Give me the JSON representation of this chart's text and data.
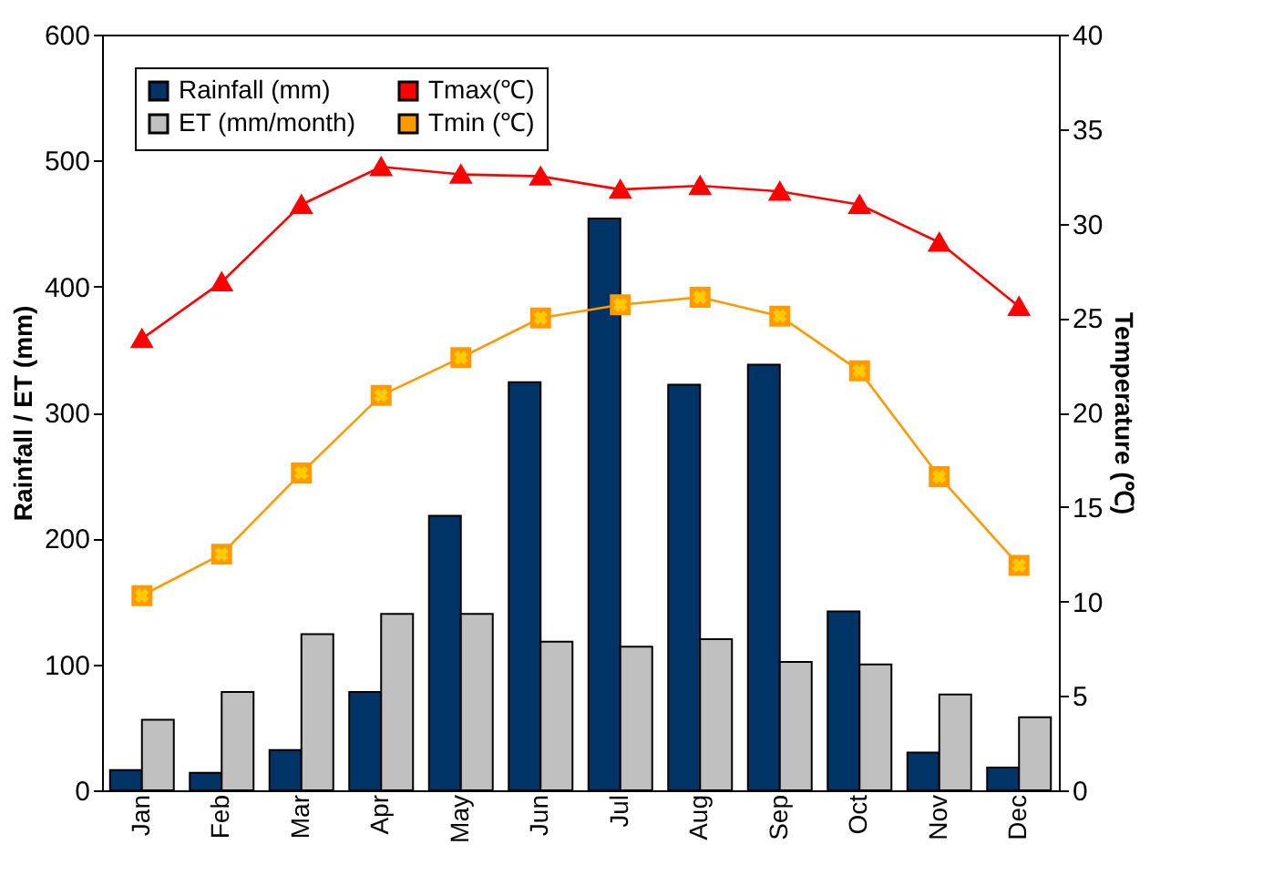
{
  "chart_data": {
    "type": "bar",
    "ylabel": "Rainfall / ET (mm)",
    "y2label": "Temperature (℃)",
    "categories": [
      "Jan",
      "Feb",
      "Mar",
      "Apr",
      "May",
      "Jun",
      "Jul",
      "Aug",
      "Sep",
      "Oct",
      "Nov",
      "Dec"
    ],
    "series": [
      {
        "name": "Rainfall (mm)",
        "color": "#003366",
        "values": [
          16,
          14,
          32,
          78,
          218,
          324,
          454,
          322,
          338,
          142,
          30,
          18
        ]
      },
      {
        "name": "ET (mm/month)",
        "color": "#c0c0c0",
        "values": [
          56,
          78,
          124,
          140,
          140,
          118,
          114,
          120,
          102,
          100,
          76,
          58
        ]
      },
      {
        "name": "Tmax(℃)",
        "type": "line",
        "axis": "y2",
        "marker": "triangle",
        "color": "#ff0000",
        "values": [
          23.9,
          26.9,
          31.0,
          33.0,
          32.6,
          32.5,
          31.8,
          32.0,
          31.7,
          31.0,
          29.0,
          25.6
        ]
      },
      {
        "name": "Tmin (℃)",
        "type": "line",
        "axis": "y2",
        "marker": "square",
        "color": "#ff9900",
        "values": [
          10.3,
          12.5,
          16.8,
          20.9,
          22.9,
          25.0,
          25.7,
          26.1,
          25.1,
          22.2,
          16.6,
          11.9
        ]
      }
    ],
    "ylim": [
      0,
      600
    ],
    "yticks": [
      0,
      100,
      200,
      300,
      400,
      500,
      600
    ],
    "y2lim": [
      0,
      40
    ],
    "y2ticks": [
      0,
      5,
      10,
      15,
      20,
      25,
      30,
      35,
      40
    ],
    "grid": false,
    "legend": "top left"
  }
}
